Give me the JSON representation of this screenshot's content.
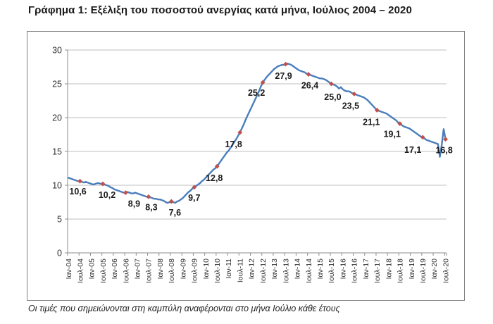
{
  "document": {
    "title": "Γράφημα 1: Εξέλιξη του ποσοστού ανεργίας κατά μήνα, Ιούλιος 2004 – 2020",
    "footnote": "Οι τιμές που σημειώνονται στη καμπύλη αναφέρονται στο μήνα Ιούλιο κάθε έτους"
  },
  "chart_data": {
    "type": "line",
    "title": "Εξέλιξη του ποσοστού ανεργίας κατά μήνα, Ιούλιος 2004 – 2020",
    "xlabel": "",
    "ylabel": "",
    "ylim": [
      0,
      30
    ],
    "y_ticks": [
      0,
      5,
      10,
      15,
      20,
      25,
      30
    ],
    "grid": true,
    "legend": "none",
    "decimal_separator": ",",
    "line_color": "#4a7ebb",
    "marker_color": "#c0504d",
    "gridline_color": "#bfbfbf",
    "axis_color": "#8c8c8c",
    "x_frequency": "monthly",
    "x_range": [
      "Ιαν-04",
      "Ιουλ-20"
    ],
    "x_tick_labels": [
      "Ιαν-04",
      "Ιουλ-04",
      "Ιαν-05",
      "Ιουλ-05",
      "Ιαν-06",
      "Ιουλ-06",
      "Ιαν-07",
      "Ιουλ-07",
      "Ιαν-08",
      "Ιουλ-08",
      "Ιαν-09",
      "Ιουλ-09",
      "Ιαν-10",
      "Ιουλ-10",
      "Ιαν-11",
      "Ιουλ-11",
      "Ιαν-12",
      "Ιουλ-12",
      "Ιαν-13",
      "Ιουλ-13",
      "Ιαν-14",
      "Ιουλ-14",
      "Ιαν-15",
      "Ιουλ-15",
      "Ιαν-16",
      "Ιουλ-16",
      "Ιαν-17",
      "Ιουλ-17",
      "Ιαν-18",
      "Ιουλ-18",
      "Ιαν-19",
      "Ιουλ-19",
      "Ιαν-20",
      "Ιουλ-20"
    ],
    "values": [
      11.1,
      11.0,
      10.9,
      10.8,
      10.7,
      10.6,
      10.6,
      10.5,
      10.4,
      10.5,
      10.4,
      10.3,
      10.2,
      10.1,
      10.2,
      10.3,
      10.3,
      10.2,
      10.2,
      10.1,
      10.0,
      9.9,
      9.7,
      9.6,
      9.4,
      9.3,
      9.2,
      9.1,
      9.0,
      8.9,
      8.9,
      9.0,
      8.9,
      8.8,
      8.8,
      8.9,
      8.8,
      8.7,
      8.6,
      8.5,
      8.4,
      8.3,
      8.3,
      8.2,
      8.1,
      8.0,
      8.0,
      7.9,
      7.9,
      7.8,
      7.7,
      7.5,
      7.4,
      7.5,
      7.6,
      7.5,
      7.4,
      7.6,
      7.7,
      7.9,
      8.1,
      8.4,
      8.7,
      9.0,
      9.2,
      9.5,
      9.7,
      9.9,
      10.1,
      10.3,
      10.6,
      10.8,
      11.1,
      11.4,
      11.7,
      12.0,
      12.3,
      12.5,
      12.8,
      13.2,
      13.6,
      14.0,
      14.4,
      14.8,
      15.1,
      15.5,
      15.9,
      16.4,
      16.8,
      17.3,
      17.8,
      18.4,
      19.0,
      19.7,
      20.3,
      20.9,
      21.5,
      22.1,
      22.7,
      23.3,
      23.9,
      24.6,
      25.2,
      25.6,
      26.0,
      26.3,
      26.6,
      26.9,
      27.2,
      27.4,
      27.6,
      27.7,
      27.8,
      27.8,
      27.9,
      28.0,
      27.9,
      27.8,
      27.6,
      27.4,
      27.2,
      27.0,
      26.9,
      26.8,
      26.7,
      26.5,
      26.4,
      26.3,
      26.2,
      26.1,
      26.0,
      25.9,
      25.8,
      25.8,
      25.7,
      25.6,
      25.4,
      25.2,
      25.0,
      24.9,
      24.8,
      24.6,
      24.3,
      24.5,
      24.2,
      24.0,
      23.9,
      23.9,
      23.8,
      23.6,
      23.5,
      23.4,
      23.3,
      23.2,
      23.1,
      23.0,
      22.8,
      22.6,
      22.3,
      22.0,
      21.7,
      21.4,
      21.1,
      21.0,
      20.9,
      20.8,
      20.7,
      20.6,
      20.4,
      20.2,
      20.0,
      19.8,
      19.6,
      19.3,
      19.1,
      18.9,
      18.7,
      18.6,
      18.5,
      18.4,
      18.2,
      18.0,
      17.8,
      17.6,
      17.4,
      17.2,
      17.1,
      16.9,
      16.7,
      16.6,
      16.5,
      16.4,
      16.3,
      16.2,
      16.1,
      14.2,
      16.0,
      18.3,
      16.8
    ],
    "annotated_points": [
      {
        "month": "Ιουλ-04",
        "value": 10.6,
        "label": "10,6"
      },
      {
        "month": "Ιουλ-05",
        "value": 10.2,
        "label": "10,2"
      },
      {
        "month": "Ιουλ-06",
        "value": 8.9,
        "label": "8,9"
      },
      {
        "month": "Ιουλ-07",
        "value": 8.3,
        "label": "8,3"
      },
      {
        "month": "Ιουλ-08",
        "value": 7.6,
        "label": "7,6"
      },
      {
        "month": "Ιουλ-09",
        "value": 9.7,
        "label": "9,7"
      },
      {
        "month": "Ιουλ-10",
        "value": 12.8,
        "label": "12,8"
      },
      {
        "month": "Ιουλ-11",
        "value": 17.8,
        "label": "17,8"
      },
      {
        "month": "Ιουλ-12",
        "value": 25.2,
        "label": "25,2"
      },
      {
        "month": "Ιουλ-13",
        "value": 27.9,
        "label": "27,9"
      },
      {
        "month": "Ιουλ-14",
        "value": 26.4,
        "label": "26,4"
      },
      {
        "month": "Ιουλ-15",
        "value": 25.0,
        "label": "25,0"
      },
      {
        "month": "Ιουλ-16",
        "value": 23.5,
        "label": "23,5"
      },
      {
        "month": "Ιουλ-17",
        "value": 21.1,
        "label": "21,1"
      },
      {
        "month": "Ιουλ-18",
        "value": 19.1,
        "label": "19,1"
      },
      {
        "month": "Ιουλ-19",
        "value": 17.1,
        "label": "17,1"
      },
      {
        "month": "Ιουλ-20",
        "value": 16.8,
        "label": "16,8"
      }
    ]
  }
}
